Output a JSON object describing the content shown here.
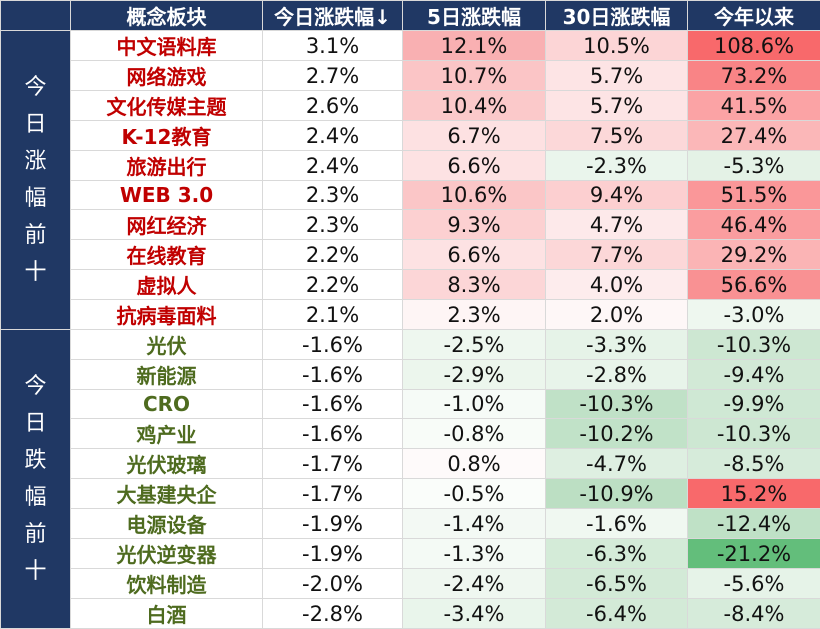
{
  "header": {
    "corner": "",
    "concept": "概念板块",
    "today": "今日涨跌幅↓",
    "five_day": "5日涨跌幅",
    "thirty_day": "30日涨跌幅",
    "ytd": "今年以来"
  },
  "sections": [
    {
      "label": "今日涨幅前十",
      "type": "up",
      "rows": [
        {
          "name": "中文语料库",
          "today": "3.1%",
          "d5": "12.1%",
          "d30": "10.5%",
          "ytd": "108.6%",
          "c_today": "#ffffff",
          "c_d5": "#f9b0b2",
          "c_d30": "#fcd5d6",
          "c_ytd": "#f8696b"
        },
        {
          "name": "网络游戏",
          "today": "2.7%",
          "d5": "10.7%",
          "d30": "5.7%",
          "ytd": "73.2%",
          "c_today": "#ffffff",
          "c_d5": "#fbc5c6",
          "c_d30": "#fde4e5",
          "c_ytd": "#f98486"
        },
        {
          "name": "文化传媒主题",
          "today": "2.6%",
          "d5": "10.4%",
          "d30": "5.7%",
          "ytd": "41.5%",
          "c_today": "#ffffff",
          "c_d5": "#fbc9ca",
          "c_d30": "#fde4e5",
          "c_ytd": "#fba3a5"
        },
        {
          "name": "K-12教育",
          "today": "2.4%",
          "d5": "6.7%",
          "d30": "7.5%",
          "ytd": "27.4%",
          "c_today": "#ffffff",
          "c_d5": "#fde1e2",
          "c_d30": "#fcd8d9",
          "c_ytd": "#fbb7b8"
        },
        {
          "name": "旅游出行",
          "today": "2.4%",
          "d5": "6.6%",
          "d30": "-2.3%",
          "ytd": "-5.3%",
          "c_today": "#ffffff",
          "c_d5": "#fde2e3",
          "c_d30": "#eaf5ec",
          "c_ytd": "#e4f2e6"
        },
        {
          "name": "WEB 3.0",
          "today": "2.3%",
          "d5": "10.6%",
          "d30": "9.4%",
          "ytd": "51.5%",
          "c_today": "#ffffff",
          "c_d5": "#fbc6c7",
          "c_d30": "#fccfd0",
          "c_ytd": "#fa9799"
        },
        {
          "name": "网红经济",
          "today": "2.3%",
          "d5": "9.3%",
          "d30": "4.7%",
          "ytd": "46.4%",
          "c_today": "#ffffff",
          "c_d5": "#fcd0d1",
          "c_d30": "#fde9ea",
          "c_ytd": "#fa9d9f"
        },
        {
          "name": "在线教育",
          "today": "2.2%",
          "d5": "6.6%",
          "d30": "7.7%",
          "ytd": "29.2%",
          "c_today": "#ffffff",
          "c_d5": "#fde2e3",
          "c_d30": "#fcd7d8",
          "c_ytd": "#fbb4b5"
        },
        {
          "name": "虚拟人",
          "today": "2.2%",
          "d5": "8.3%",
          "d30": "4.0%",
          "ytd": "56.6%",
          "c_today": "#ffffff",
          "c_d5": "#fcd6d7",
          "c_d30": "#fdeced",
          "c_ytd": "#f99193"
        },
        {
          "name": "抗病毒面料",
          "today": "2.1%",
          "d5": "2.3%",
          "d30": "2.0%",
          "ytd": "-3.0%",
          "c_today": "#ffffff",
          "c_d5": "#fef5f5",
          "c_d30": "#fef7f7",
          "c_ytd": "#eef7ef"
        }
      ]
    },
    {
      "label": "今日跌幅前十",
      "type": "down",
      "rows": [
        {
          "name": "光伏",
          "today": "-1.6%",
          "d5": "-2.5%",
          "d30": "-3.3%",
          "ytd": "-10.3%",
          "c_today": "#ffffff",
          "c_d5": "#eef7ef",
          "c_d30": "#e6f3e8",
          "c_ytd": "#cde7d2"
        },
        {
          "name": "新能源",
          "today": "-1.6%",
          "d5": "-2.9%",
          "d30": "-2.8%",
          "ytd": "-9.4%",
          "c_today": "#ffffff",
          "c_d5": "#ecf6ed",
          "c_d30": "#e8f4ea",
          "c_ytd": "#d2e9d6"
        },
        {
          "name": "CRO",
          "today": "-1.6%",
          "d5": "-1.0%",
          "d30": "-10.3%",
          "ytd": "-9.9%",
          "c_today": "#ffffff",
          "c_d5": "#f6fbf7",
          "c_d30": "#c0e1c7",
          "c_ytd": "#cfe8d4"
        },
        {
          "name": "鸡产业",
          "today": "-1.6%",
          "d5": "-0.8%",
          "d30": "-10.2%",
          "ytd": "-10.3%",
          "c_today": "#ffffff",
          "c_d5": "#f8fcf8",
          "c_d30": "#c1e2c8",
          "c_ytd": "#cde7d2"
        },
        {
          "name": "光伏玻璃",
          "today": "-1.7%",
          "d5": "0.8%",
          "d30": "-4.7%",
          "ytd": "-8.5%",
          "c_today": "#ffffff",
          "c_d5": "#fefafa",
          "c_d30": "#deefe1",
          "c_ytd": "#d6ebda"
        },
        {
          "name": "大基建央企",
          "today": "-1.7%",
          "d5": "-0.5%",
          "d30": "-10.9%",
          "ytd": "15.2%",
          "c_today": "#ffffff",
          "c_d5": "#fafdfa",
          "c_d30": "#bcdfc3",
          "c_ytd": "#f8696b"
        },
        {
          "name": "电源设备",
          "today": "-1.9%",
          "d5": "-1.4%",
          "d30": "-1.6%",
          "ytd": "-12.4%",
          "c_today": "#ffffff",
          "c_d5": "#f3f9f4",
          "c_d30": "#f0f8f1",
          "c_ytd": "#bfe1c6"
        },
        {
          "name": "光伏逆变器",
          "today": "-1.9%",
          "d5": "-1.3%",
          "d30": "-6.3%",
          "ytd": "-21.2%",
          "c_today": "#ffffff",
          "c_d5": "#f4faf5",
          "c_d30": "#d4ebd8",
          "c_ytd": "#63be7b"
        },
        {
          "name": "饮料制造",
          "today": "-2.0%",
          "d5": "-2.4%",
          "d30": "-6.5%",
          "ytd": "-5.6%",
          "c_today": "#ffffff",
          "c_d5": "#eff7f0",
          "c_d30": "#d3ead7",
          "c_ytd": "#e6f3e8"
        },
        {
          "name": "白酒",
          "today": "-2.8%",
          "d5": "-3.4%",
          "d30": "-6.4%",
          "ytd": "-8.4%",
          "c_today": "#ffffff",
          "c_d5": "#e9f5eb",
          "c_d30": "#d3ead7",
          "c_ytd": "#d6ebda"
        }
      ]
    }
  ]
}
